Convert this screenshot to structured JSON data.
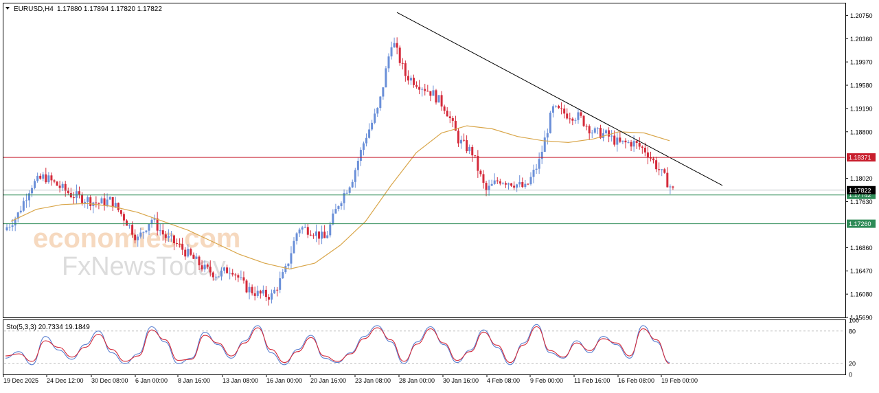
{
  "chart_data": [
    {
      "type": "candlestick",
      "symbol": "EURUSD,H4",
      "ohlc_header": "1.17880 1.17894 1.17820 1.17822",
      "ylim": [
        1.1569,
        1.2095
      ],
      "yticks": [
        1.2075,
        1.2036,
        1.1997,
        1.1958,
        1.1919,
        1.188,
        1.1802,
        1.1763,
        1.1686,
        1.1647,
        1.1608,
        1.1569
      ],
      "ytick_labels": [
        "1.20750",
        "1.20360",
        "1.19970",
        "1.19580",
        "1.19190",
        "1.18800",
        "1.18020",
        "1.17630",
        "1.16860",
        "1.16470",
        "1.16080",
        "1.15690"
      ],
      "xtick_labels": [
        "19 Dec 2025",
        "24 Dec 12:00",
        "30 Dec 08:00",
        "6 Jan 00:00",
        "8 Jan 16:00",
        "13 Jan 08:00",
        "16 Jan 00:00",
        "20 Jan 16:00",
        "23 Jan 08:00",
        "28 Jan 00:00",
        "30 Jan 16:00",
        "4 Feb 08:00",
        "9 Feb 00:00",
        "11 Feb 16:00",
        "16 Feb 08:00",
        "19 Feb 00:00"
      ],
      "close_path": [
        1.1715,
        1.174,
        1.179,
        1.1805,
        1.179,
        1.1775,
        1.1768,
        1.176,
        1.1765,
        1.1735,
        1.17,
        1.1735,
        1.1705,
        1.169,
        1.167,
        1.165,
        1.164,
        1.1652,
        1.162,
        1.1608,
        1.1605,
        1.1645,
        1.172,
        1.1715,
        1.17,
        1.176,
        1.18,
        1.187,
        1.192,
        1.2035,
        1.1975,
        1.196,
        1.1945,
        1.192,
        1.1865,
        1.1845,
        1.178,
        1.18,
        1.1795,
        1.1785,
        1.183,
        1.1918,
        1.191,
        1.1905,
        1.188,
        1.1875,
        1.186,
        1.1862,
        1.1848,
        1.1815,
        1.1782
      ],
      "moving_average_path": [
        1.173,
        1.175,
        1.1758,
        1.176,
        1.1755,
        1.1745,
        1.173,
        1.1715,
        1.1695,
        1.1675,
        1.166,
        1.165,
        1.166,
        1.169,
        1.173,
        1.179,
        1.1845,
        1.1878,
        1.189,
        1.1885,
        1.1872,
        1.1865,
        1.1862,
        1.1868,
        1.188,
        1.1878,
        1.1865
      ],
      "trendline": {
        "from": 1.208,
        "to": 1.179
      },
      "horizontal_levels": [
        {
          "value": 1.18371,
          "label": "1.18371",
          "color": "#c81e2d"
        },
        {
          "value": 1.17742,
          "label": "1.17742",
          "color": "#2e8b57"
        },
        {
          "value": 1.1726,
          "label": "1.17260",
          "color": "#2e8b57"
        }
      ],
      "last_price_label": "1.17822",
      "colors": {
        "bull": "#6a8fd8",
        "bear": "#d42a3a",
        "moving_average": "#d9a64a",
        "trendline": "#000000"
      },
      "grid": false
    },
    {
      "type": "line",
      "title": "Sto(5,3,3) 20.7334 19.1849",
      "ylim": [
        0,
        100
      ],
      "yticks": [
        100,
        80,
        20,
        0
      ],
      "ytick_labels": [
        "100",
        "80",
        "20",
        "0"
      ],
      "levels": [
        80,
        20
      ],
      "series": [
        {
          "values": [
            30,
            42,
            18,
            70,
            45,
            28,
            55,
            80,
            40,
            20,
            38,
            88,
            60,
            20,
            30,
            78,
            55,
            30,
            62,
            90,
            40,
            18,
            46,
            72,
            30,
            22,
            40,
            70,
            90,
            60,
            20,
            60,
            88,
            55,
            22,
            45,
            82,
            50,
            18,
            58,
            92,
            40,
            30,
            62,
            40,
            70,
            55,
            30,
            90,
            60,
            22
          ],
          "color": "#5a7fd0"
        },
        {
          "values": [
            34,
            38,
            24,
            62,
            50,
            32,
            50,
            74,
            46,
            24,
            34,
            82,
            64,
            26,
            28,
            72,
            58,
            34,
            58,
            86,
            46,
            22,
            42,
            68,
            34,
            24,
            38,
            66,
            86,
            64,
            24,
            56,
            84,
            58,
            26,
            42,
            78,
            54,
            22,
            54,
            88,
            44,
            32,
            58,
            44,
            66,
            58,
            34,
            84,
            64,
            20
          ],
          "color": "#d42a3a"
        }
      ]
    }
  ],
  "watermark": {
    "line1": "economies.com",
    "line2": "FxNewsToday"
  }
}
